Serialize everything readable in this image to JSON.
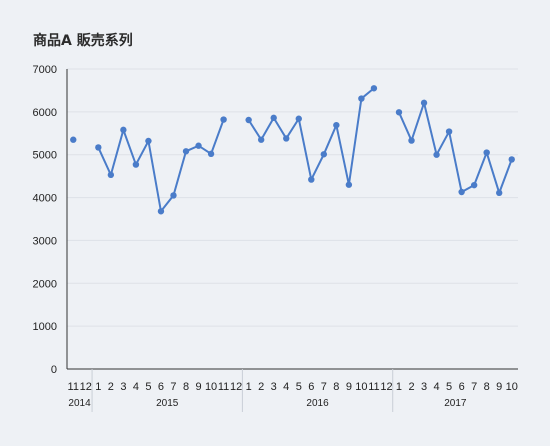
{
  "chart_data": {
    "type": "line",
    "title": "商品A 販売系列",
    "xlabel": "",
    "ylabel": "",
    "ylim": [
      0,
      7000
    ],
    "y_ticks": [
      0,
      1000,
      2000,
      3000,
      4000,
      5000,
      6000,
      7000
    ],
    "grid": true,
    "legend": "none",
    "color": "#4a7cc9",
    "years": [
      {
        "label": "2014",
        "months": [
          "11",
          "12"
        ],
        "values": [
          5350,
          null
        ]
      },
      {
        "label": "2015",
        "months": [
          "1",
          "2",
          "3",
          "4",
          "5",
          "6",
          "7",
          "8",
          "9",
          "10",
          "11",
          "12"
        ],
        "values": [
          5170,
          4530,
          5580,
          4770,
          5320,
          3680,
          4050,
          5080,
          5210,
          5020,
          5820,
          null
        ]
      },
      {
        "label": "2016",
        "months": [
          "1",
          "2",
          "3",
          "4",
          "5",
          "6",
          "7",
          "8",
          "9",
          "10",
          "11",
          "12"
        ],
        "values": [
          5810,
          5350,
          5860,
          5380,
          5840,
          4420,
          5010,
          5690,
          4300,
          6310,
          6550,
          null
        ]
      },
      {
        "label": "2017",
        "months": [
          "1",
          "2",
          "3",
          "4",
          "5",
          "6",
          "7",
          "8",
          "9",
          "10"
        ],
        "values": [
          5990,
          5330,
          6210,
          5000,
          5540,
          4130,
          4290,
          5050,
          4110,
          4890
        ]
      }
    ]
  }
}
